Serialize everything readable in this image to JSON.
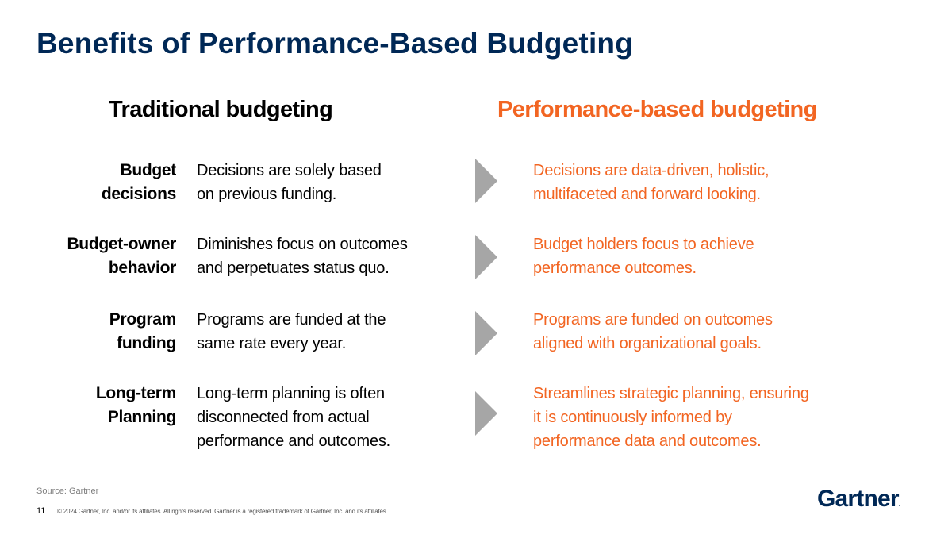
{
  "title": "Benefits of Performance-Based Budgeting",
  "headers": {
    "traditional": "Traditional budgeting",
    "performance": "Performance-based budgeting"
  },
  "rows": [
    {
      "label": [
        "Budget",
        "decisions"
      ],
      "traditional": [
        "Decisions are solely based",
        "on previous funding."
      ],
      "performance": [
        "Decisions are data-driven, holistic,",
        "multifaceted and forward looking."
      ]
    },
    {
      "label": [
        "Budget-owner",
        "behavior"
      ],
      "traditional": [
        "Diminishes focus on outcomes",
        "and perpetuates status quo."
      ],
      "performance": [
        "Budget holders focus to achieve",
        "performance outcomes."
      ]
    },
    {
      "label": [
        "Program",
        "funding"
      ],
      "traditional": [
        "Programs are funded at the",
        "same rate every year."
      ],
      "performance": [
        "Programs are funded on outcomes",
        "aligned with organizational goals."
      ]
    },
    {
      "label": [
        "Long-term",
        "Planning"
      ],
      "traditional": [
        "Long-term planning is often",
        "disconnected from actual",
        "performance and outcomes."
      ],
      "performance": [
        "Streamlines strategic planning, ensuring",
        "it is continuously informed by",
        "performance data and outcomes."
      ]
    }
  ],
  "footer": {
    "source": "Source: Gartner",
    "page_number": "11",
    "copyright": "© 2024 Gartner, Inc. and/or its affiliates. All rights reserved. Gartner is a registered trademark of Gartner, Inc. and its affiliates.",
    "logo_text": "Gartner",
    "logo_mark": "."
  },
  "colors": {
    "title": "#002856",
    "accent": "#f26522",
    "arrow": "#a6a6a6"
  }
}
